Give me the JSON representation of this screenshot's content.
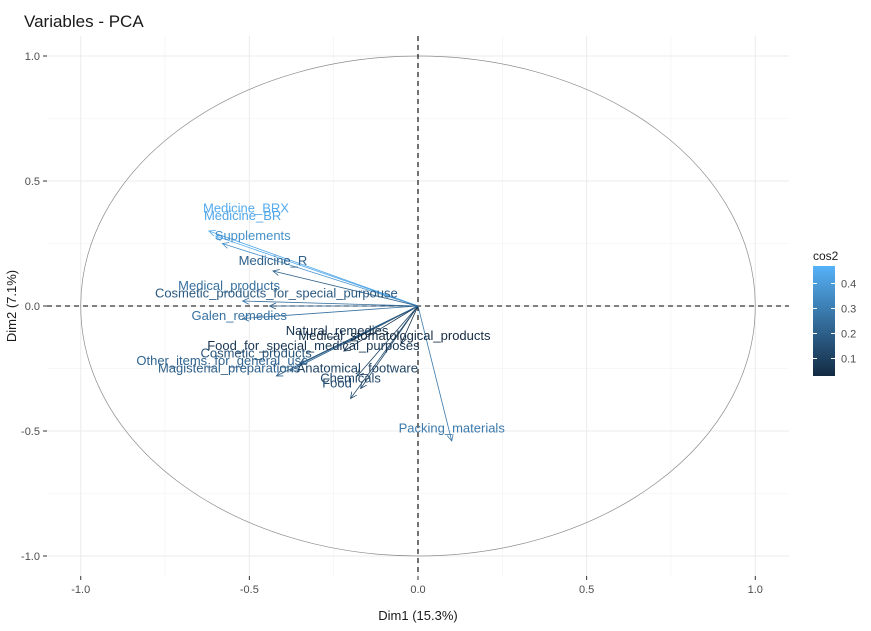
{
  "chart_data": {
    "type": "scatter",
    "title": "Variables - PCA",
    "xlabel": "Dim1 (15.3%)",
    "ylabel": "Dim2 (7.1%)",
    "xlim": [
      -1.1,
      1.1
    ],
    "ylim": [
      -1.08,
      1.08
    ],
    "x_ticks": [
      -1.0,
      -0.5,
      0.0,
      0.5,
      1.0
    ],
    "x_tick_labels": [
      "-1.0",
      "-0.5",
      "0.0",
      "0.5",
      "1.0"
    ],
    "y_ticks": [
      -1.0,
      -0.5,
      0.0,
      0.5,
      1.0
    ],
    "y_tick_labels": [
      "-1.0",
      "-0.5",
      "0.0",
      "0.5",
      "1.0"
    ],
    "grid": true,
    "unit_circle": true,
    "legend": {
      "title": "cos2",
      "position": "right",
      "ticks": [
        0.1,
        0.2,
        0.3,
        0.4
      ],
      "tick_labels": [
        "0.1",
        "0.2",
        "0.3",
        "0.4"
      ],
      "range": [
        0.03,
        0.47
      ],
      "color_low": "#132B43",
      "color_high": "#56B1F7"
    },
    "variables": [
      {
        "name": "Medicine_BRX",
        "x": -0.6,
        "y": 0.28,
        "lx": -0.51,
        "ly": 0.39,
        "cos2": 0.45
      },
      {
        "name": "Medicine_BR",
        "x": -0.62,
        "y": 0.3,
        "lx": -0.52,
        "ly": 0.36,
        "cos2": 0.43
      },
      {
        "name": "Supplements",
        "x": -0.58,
        "y": 0.25,
        "lx": -0.49,
        "ly": 0.28,
        "cos2": 0.36
      },
      {
        "name": "Medicine_R",
        "x": -0.43,
        "y": 0.14,
        "lx": -0.43,
        "ly": 0.18,
        "cos2": 0.2
      },
      {
        "name": "Medical_products",
        "x": -0.52,
        "y": 0.02,
        "lx": -0.56,
        "ly": 0.08,
        "cos2": 0.26
      },
      {
        "name": "Cosmetic_products_for_special_purpouse",
        "x": -0.44,
        "y": 0.0,
        "lx": -0.42,
        "ly": 0.05,
        "cos2": 0.18
      },
      {
        "name": "Galen_remedies",
        "x": -0.52,
        "y": -0.05,
        "lx": -0.53,
        "ly": -0.04,
        "cos2": 0.26
      },
      {
        "name": "Natural_remedies",
        "x": -0.2,
        "y": -0.14,
        "lx": -0.24,
        "ly": -0.1,
        "cos2": 0.06
      },
      {
        "name": "Medical_stomatological_products",
        "x": -0.05,
        "y": -0.15,
        "lx": -0.07,
        "ly": -0.12,
        "cos2": 0.03
      },
      {
        "name": "Food_for_special_medical_purposes",
        "x": -0.22,
        "y": -0.18,
        "lx": -0.31,
        "ly": -0.16,
        "cos2": 0.07
      },
      {
        "name": "Cosmetic_products",
        "x": -0.35,
        "y": -0.23,
        "lx": -0.48,
        "ly": -0.19,
        "cos2": 0.16
      },
      {
        "name": "Other_items_for_general_use",
        "x": -0.38,
        "y": -0.26,
        "lx": -0.58,
        "ly": -0.22,
        "cos2": 0.22
      },
      {
        "name": "Magisterial_preparations",
        "x": -0.42,
        "y": -0.28,
        "lx": -0.56,
        "ly": -0.25,
        "cos2": 0.2
      },
      {
        "name": "Anatomical_footware",
        "x": -0.18,
        "y": -0.28,
        "lx": -0.18,
        "ly": -0.25,
        "cos2": 0.11
      },
      {
        "name": "Chemicals",
        "x": -0.17,
        "y": -0.33,
        "lx": -0.2,
        "ly": -0.29,
        "cos2": 0.12
      },
      {
        "name": "Food",
        "x": -0.2,
        "y": -0.37,
        "lx": -0.24,
        "ly": -0.31,
        "cos2": 0.14
      },
      {
        "name": "Packing_materials",
        "x": 0.1,
        "y": -0.54,
        "lx": 0.1,
        "ly": -0.49,
        "cos2": 0.29
      }
    ]
  }
}
